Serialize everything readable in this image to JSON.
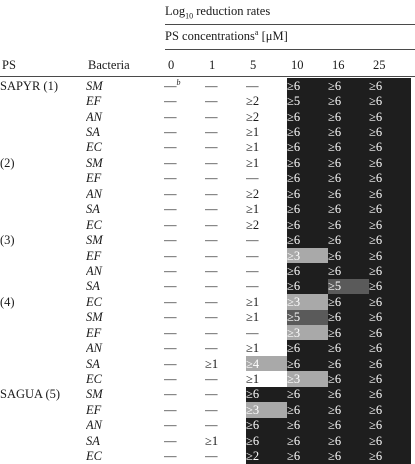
{
  "header": {
    "title_prefix": "Log",
    "title_sub": "10",
    "title_suffix": " reduction rates",
    "conc_label": "PS concentrations",
    "conc_sup": "a",
    "conc_unit": " [μM]",
    "col_ps": "PS",
    "col_bacteria": "Bacteria",
    "concentrations": [
      "0",
      "1",
      "5",
      "10",
      "16",
      "25"
    ]
  },
  "footnote_marker": "b",
  "shade_legend": {
    "d": "#1e1e1e",
    "m": "#5a5a5a",
    "l": "#a9a9a9"
  },
  "rows": [
    {
      "ps": "SAPYR (1)",
      "bacteria": "SM",
      "cells": [
        "—",
        "—",
        "—",
        "≥6",
        "≥6",
        "≥6"
      ],
      "shade": [
        "",
        "",
        "",
        "d",
        "d",
        "d"
      ]
    },
    {
      "ps": "",
      "bacteria": "EF",
      "cells": [
        "—",
        "—",
        "≥2",
        "≥5",
        "≥6",
        "≥6"
      ],
      "shade": [
        "",
        "",
        "",
        "d",
        "d",
        "d"
      ]
    },
    {
      "ps": "",
      "bacteria": "AN",
      "cells": [
        "—",
        "—",
        "≥2",
        "≥6",
        "≥6",
        "≥6"
      ],
      "shade": [
        "",
        "",
        "",
        "d",
        "d",
        "d"
      ]
    },
    {
      "ps": "",
      "bacteria": "SA",
      "cells": [
        "—",
        "—",
        "≥1",
        "≥6",
        "≥6",
        "≥6"
      ],
      "shade": [
        "",
        "",
        "",
        "d",
        "d",
        "d"
      ]
    },
    {
      "ps": "",
      "bacteria": "EC",
      "cells": [
        "—",
        "—",
        "≥1",
        "≥6",
        "≥6",
        "≥6"
      ],
      "shade": [
        "",
        "",
        "",
        "d",
        "d",
        "d"
      ]
    },
    {
      "ps": "(2)",
      "bacteria": "SM",
      "cells": [
        "—",
        "—",
        "≥1",
        "≥6",
        "≥6",
        "≥6"
      ],
      "shade": [
        "",
        "",
        "",
        "d",
        "d",
        "d"
      ]
    },
    {
      "ps": "",
      "bacteria": "EF",
      "cells": [
        "—",
        "—",
        "—",
        "≥6",
        "≥6",
        "≥6"
      ],
      "shade": [
        "",
        "",
        "",
        "d",
        "d",
        "d"
      ]
    },
    {
      "ps": "",
      "bacteria": "AN",
      "cells": [
        "—",
        "—",
        "≥2",
        "≥6",
        "≥6",
        "≥6"
      ],
      "shade": [
        "",
        "",
        "",
        "d",
        "d",
        "d"
      ]
    },
    {
      "ps": "",
      "bacteria": "SA",
      "cells": [
        "—",
        "—",
        "≥1",
        "≥6",
        "≥6",
        "≥6"
      ],
      "shade": [
        "",
        "",
        "",
        "d",
        "d",
        "d"
      ]
    },
    {
      "ps": "",
      "bacteria": "EC",
      "cells": [
        "—",
        "—",
        "≥2",
        "≥6",
        "≥6",
        "≥6"
      ],
      "shade": [
        "",
        "",
        "",
        "d",
        "d",
        "d"
      ]
    },
    {
      "ps": "(3)",
      "bacteria": "SM",
      "cells": [
        "—",
        "—",
        "—",
        "≥6",
        "≥6",
        "≥6"
      ],
      "shade": [
        "",
        "",
        "",
        "d",
        "d",
        "d"
      ]
    },
    {
      "ps": "",
      "bacteria": "EF",
      "cells": [
        "—",
        "—",
        "—",
        "≥3",
        "≥6",
        "≥6"
      ],
      "shade": [
        "",
        "",
        "",
        "l",
        "d",
        "d"
      ]
    },
    {
      "ps": "",
      "bacteria": "AN",
      "cells": [
        "—",
        "—",
        "—",
        "≥6",
        "≥6",
        "≥6"
      ],
      "shade": [
        "",
        "",
        "",
        "d",
        "d",
        "d"
      ]
    },
    {
      "ps": "",
      "bacteria": "SA",
      "cells": [
        "—",
        "—",
        "—",
        "≥6",
        "≥5",
        "≥6"
      ],
      "shade": [
        "",
        "",
        "",
        "d",
        "m",
        "d"
      ]
    },
    {
      "ps": "(4)",
      "bacteria": "EC",
      "cells": [
        "—",
        "—",
        "≥1",
        "≥3",
        "≥6",
        "≥6"
      ],
      "shade": [
        "",
        "",
        "",
        "l",
        "d",
        "d"
      ]
    },
    {
      "ps": "",
      "bacteria": "SM",
      "cells": [
        "—",
        "—",
        "≥1",
        "≥5",
        "≥6",
        "≥6"
      ],
      "shade": [
        "",
        "",
        "",
        "m",
        "d",
        "d"
      ]
    },
    {
      "ps": "",
      "bacteria": "EF",
      "cells": [
        "—",
        "—",
        "—",
        "≥3",
        "≥6",
        "≥6"
      ],
      "shade": [
        "",
        "",
        "",
        "l",
        "d",
        "d"
      ]
    },
    {
      "ps": "",
      "bacteria": "AN",
      "cells": [
        "—",
        "—",
        "≥1",
        "≥6",
        "≥6",
        "≥6"
      ],
      "shade": [
        "",
        "",
        "",
        "d",
        "d",
        "d"
      ]
    },
    {
      "ps": "",
      "bacteria": "SA",
      "cells": [
        "—",
        "≥1",
        "≥4",
        "≥6",
        "≥6",
        "≥6"
      ],
      "shade": [
        "",
        "",
        "l",
        "d",
        "d",
        "d"
      ]
    },
    {
      "ps": "",
      "bacteria": "EC",
      "cells": [
        "—",
        "—",
        "≥1",
        "≥3",
        "≥6",
        "≥6"
      ],
      "shade": [
        "",
        "",
        "",
        "l",
        "d",
        "d"
      ]
    },
    {
      "ps": "SAGUA (5)",
      "bacteria": "SM",
      "cells": [
        "—",
        "—",
        "≥6",
        "≥6",
        "≥6",
        "≥6"
      ],
      "shade": [
        "",
        "",
        "d",
        "d",
        "d",
        "d"
      ]
    },
    {
      "ps": "",
      "bacteria": "EF",
      "cells": [
        "—",
        "—",
        "≥3",
        "≥6",
        "≥6",
        "≥6"
      ],
      "shade": [
        "",
        "",
        "l",
        "d",
        "d",
        "d"
      ]
    },
    {
      "ps": "",
      "bacteria": "AN",
      "cells": [
        "—",
        "—",
        "≥6",
        "≥6",
        "≥6",
        "≥6"
      ],
      "shade": [
        "",
        "",
        "d",
        "d",
        "d",
        "d"
      ]
    },
    {
      "ps": "",
      "bacteria": "SA",
      "cells": [
        "—",
        "≥1",
        "≥6",
        "≥6",
        "≥6",
        "≥6"
      ],
      "shade": [
        "",
        "",
        "d",
        "d",
        "d",
        "d"
      ]
    },
    {
      "ps": "",
      "bacteria": "EC",
      "cells": [
        "—",
        "—",
        "≥2",
        "≥6",
        "≥6",
        "≥6"
      ],
      "shade": [
        "",
        "",
        "d",
        "d",
        "d",
        "d"
      ]
    }
  ]
}
